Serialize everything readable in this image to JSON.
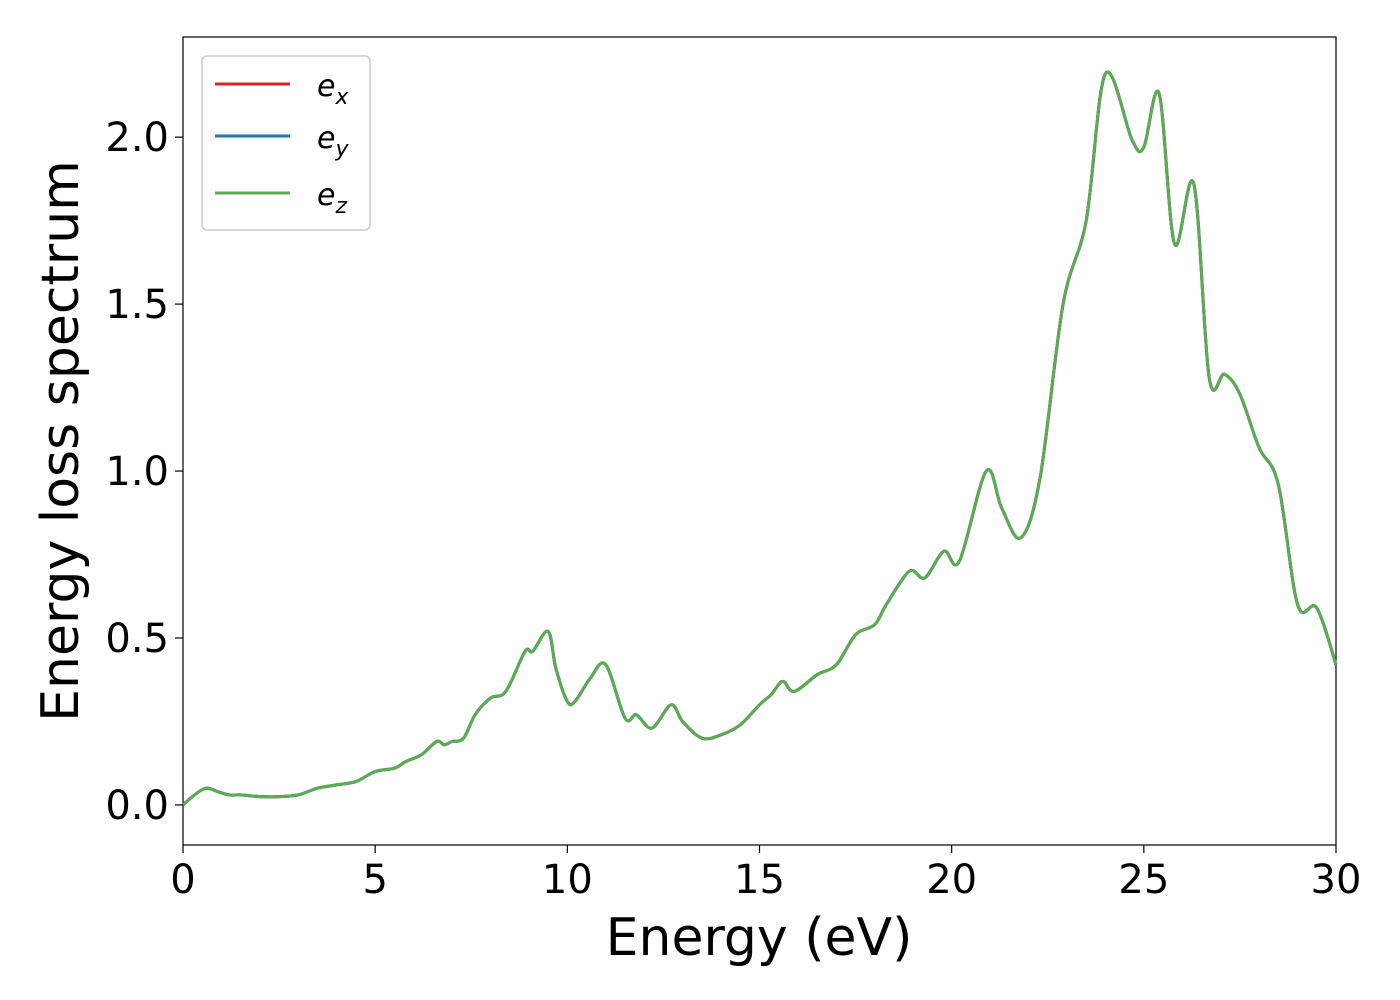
{
  "chart_data": {
    "type": "line",
    "title": "",
    "xlabel": "Energy (eV)",
    "ylabel": "Energy loss spectrum",
    "xlim": [
      0,
      30
    ],
    "ylim": [
      -0.12,
      2.3
    ],
    "xticks": [
      0,
      5,
      10,
      15,
      20,
      25,
      30
    ],
    "yticks": [
      0.0,
      0.5,
      1.0,
      1.5,
      2.0
    ],
    "xtick_labels": [
      "0",
      "5",
      "10",
      "15",
      "20",
      "25",
      "30"
    ],
    "ytick_labels": [
      "0.0",
      "0.5",
      "1.0",
      "1.5",
      "2.0"
    ],
    "grid": false,
    "legend_position": "top-left",
    "x": [
      0,
      0.3,
      0.6,
      0.9,
      1.2,
      1.5,
      2.0,
      2.5,
      3.0,
      3.5,
      4.0,
      4.5,
      5.0,
      5.5,
      5.8,
      6.2,
      6.6,
      6.8,
      7.0,
      7.3,
      7.6,
      8.0,
      8.4,
      8.9,
      9.1,
      9.5,
      9.7,
      10.0,
      10.2,
      10.6,
      11.0,
      11.5,
      11.8,
      12.2,
      12.7,
      13.0,
      13.5,
      14.0,
      14.5,
      15.0,
      15.3,
      15.6,
      15.9,
      16.5,
      17.0,
      17.5,
      18.0,
      18.3,
      18.9,
      19.3,
      19.8,
      20.2,
      20.9,
      21.3,
      21.8,
      22.3,
      22.9,
      23.5,
      24.0,
      24.7,
      25.0,
      25.4,
      25.8,
      26.3,
      26.7,
      27.1,
      27.5,
      28.0,
      28.5,
      29.0,
      29.5,
      30.0
    ],
    "series": [
      {
        "name": "e_x",
        "color": "#d62728",
        "values": [
          0.0,
          0.03,
          0.05,
          0.04,
          0.03,
          0.03,
          0.025,
          0.025,
          0.03,
          0.05,
          0.06,
          0.07,
          0.1,
          0.11,
          0.13,
          0.15,
          0.19,
          0.18,
          0.19,
          0.2,
          0.27,
          0.32,
          0.34,
          0.46,
          0.46,
          0.52,
          0.41,
          0.31,
          0.31,
          0.38,
          0.42,
          0.26,
          0.27,
          0.23,
          0.3,
          0.25,
          0.2,
          0.21,
          0.24,
          0.3,
          0.33,
          0.37,
          0.34,
          0.39,
          0.42,
          0.51,
          0.54,
          0.6,
          0.7,
          0.68,
          0.76,
          0.73,
          1.0,
          0.89,
          0.8,
          0.98,
          1.5,
          1.75,
          2.19,
          1.99,
          1.97,
          2.13,
          1.68,
          1.86,
          1.28,
          1.29,
          1.23,
          1.07,
          0.96,
          0.6,
          0.59,
          0.42
        ]
      },
      {
        "name": "e_y",
        "color": "#1f77b4",
        "values": [
          0.0,
          0.03,
          0.05,
          0.04,
          0.03,
          0.03,
          0.025,
          0.025,
          0.03,
          0.05,
          0.06,
          0.07,
          0.1,
          0.11,
          0.13,
          0.15,
          0.19,
          0.18,
          0.19,
          0.2,
          0.27,
          0.32,
          0.34,
          0.46,
          0.46,
          0.52,
          0.41,
          0.31,
          0.31,
          0.38,
          0.42,
          0.26,
          0.27,
          0.23,
          0.3,
          0.25,
          0.2,
          0.21,
          0.24,
          0.3,
          0.33,
          0.37,
          0.34,
          0.39,
          0.42,
          0.51,
          0.54,
          0.6,
          0.7,
          0.68,
          0.76,
          0.73,
          1.0,
          0.89,
          0.8,
          0.98,
          1.5,
          1.75,
          2.19,
          1.99,
          1.97,
          2.13,
          1.68,
          1.86,
          1.28,
          1.29,
          1.23,
          1.07,
          0.96,
          0.6,
          0.59,
          0.42
        ]
      },
      {
        "name": "e_z",
        "color": "#5aab52",
        "values": [
          0.0,
          0.03,
          0.05,
          0.04,
          0.03,
          0.03,
          0.025,
          0.025,
          0.03,
          0.05,
          0.06,
          0.07,
          0.1,
          0.11,
          0.13,
          0.15,
          0.19,
          0.18,
          0.19,
          0.2,
          0.27,
          0.32,
          0.34,
          0.46,
          0.46,
          0.52,
          0.41,
          0.31,
          0.31,
          0.38,
          0.42,
          0.26,
          0.27,
          0.23,
          0.3,
          0.25,
          0.2,
          0.21,
          0.24,
          0.3,
          0.33,
          0.37,
          0.34,
          0.39,
          0.42,
          0.51,
          0.54,
          0.6,
          0.7,
          0.68,
          0.76,
          0.73,
          1.0,
          0.89,
          0.8,
          0.98,
          1.5,
          1.75,
          2.19,
          1.99,
          1.97,
          2.13,
          1.68,
          1.86,
          1.28,
          1.29,
          1.23,
          1.07,
          0.96,
          0.6,
          0.59,
          0.42
        ]
      }
    ]
  }
}
